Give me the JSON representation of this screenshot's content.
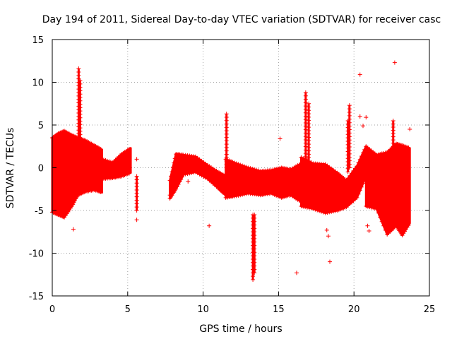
{
  "chart_data": {
    "type": "scatter",
    "title": "Day 194 of 2011, Sidereal Day-to-day VTEC variation (SDTVAR) for receiver casc",
    "xlabel": "GPS time / hours",
    "ylabel": "SDTVAR / TECUs",
    "xlim": [
      0,
      25
    ],
    "ylim": [
      -15,
      15
    ],
    "xticks": [
      0,
      5,
      10,
      15,
      20,
      25
    ],
    "yticks": [
      -15,
      -10,
      -5,
      0,
      5,
      10,
      15
    ],
    "xtick_labels": [
      "0",
      "5",
      "10",
      "15",
      "20",
      "25"
    ],
    "ytick_labels": [
      "-15",
      "-10",
      "-5",
      "0",
      "5",
      "10",
      "15"
    ],
    "grid": true,
    "marker": "+",
    "color": "#ff0000",
    "bands": [
      {
        "x": [
          0.0,
          0.4,
          0.8,
          1.3,
          1.7,
          2.2,
          2.8,
          3.3
        ],
        "upper": [
          3.5,
          4.0,
          4.3,
          3.8,
          3.5,
          3.2,
          2.6,
          2.1
        ],
        "lower": [
          -5.2,
          -5.5,
          -5.8,
          -4.5,
          -3.2,
          -2.8,
          -2.6,
          -2.9
        ]
      },
      {
        "x": [
          3.3,
          4.0,
          4.6,
          5.2
        ],
        "upper": [
          1.0,
          0.6,
          1.6,
          2.3
        ],
        "lower": [
          -1.3,
          -1.2,
          -1.0,
          -0.6
        ]
      },
      {
        "x": [
          7.8,
          8.2,
          8.7,
          9.5,
          10.3,
          11.0,
          11.5
        ],
        "upper": [
          -1.5,
          1.6,
          1.5,
          1.3,
          0.3,
          -0.5,
          -1.0
        ],
        "lower": [
          -3.6,
          -2.5,
          -0.8,
          -0.5,
          -1.3,
          -2.4,
          -3.2
        ]
      },
      {
        "x": [
          11.5,
          12.2,
          13.0,
          13.8,
          14.5,
          15.2,
          15.8,
          16.5
        ],
        "upper": [
          1.0,
          0.5,
          0.0,
          -0.4,
          -0.3,
          0.0,
          -0.2,
          0.5
        ],
        "lower": [
          -3.5,
          -3.3,
          -3.0,
          -3.2,
          -3.0,
          -3.5,
          -3.2,
          -4.0
        ]
      },
      {
        "x": [
          16.5,
          17.3,
          18.1,
          18.9,
          19.5,
          20.2,
          20.8
        ],
        "upper": [
          1.2,
          0.5,
          0.4,
          -0.6,
          -1.5,
          0.2,
          2.5
        ],
        "lower": [
          -4.5,
          -4.8,
          -5.3,
          -5.0,
          -4.6,
          -3.5,
          -1.0
        ]
      },
      {
        "x": [
          20.8,
          21.5,
          22.2,
          22.8,
          23.2,
          23.7
        ],
        "upper": [
          2.5,
          1.5,
          1.8,
          2.8,
          2.6,
          2.3
        ],
        "lower": [
          -4.5,
          -4.8,
          -7.8,
          -6.8,
          -7.9,
          -6.5
        ]
      }
    ],
    "spikes": [
      {
        "x": 1.75,
        "y0": 2.0,
        "y1": 11.6
      },
      {
        "x": 1.85,
        "y0": 1.5,
        "y1": 10.2
      },
      {
        "x": 11.55,
        "y0": 0.0,
        "y1": 6.3
      },
      {
        "x": 13.3,
        "y0": -5.5,
        "y1": -13.1
      },
      {
        "x": 13.4,
        "y0": -5.5,
        "y1": -12.3
      },
      {
        "x": 16.8,
        "y0": 0.5,
        "y1": 8.8
      },
      {
        "x": 17.0,
        "y0": 0.0,
        "y1": 7.5
      },
      {
        "x": 19.7,
        "y0": 0.0,
        "y1": 7.3
      },
      {
        "x": 19.6,
        "y0": -0.5,
        "y1": 5.5
      },
      {
        "x": 22.6,
        "y0": 2.5,
        "y1": 5.5
      },
      {
        "x": 5.6,
        "y0": -1.0,
        "y1": -5.0
      }
    ],
    "outliers": [
      {
        "x": 1.4,
        "y": -7.2
      },
      {
        "x": 5.6,
        "y": 1.0
      },
      {
        "x": 5.6,
        "y": -6.1
      },
      {
        "x": 10.4,
        "y": -6.8
      },
      {
        "x": 15.1,
        "y": 3.4
      },
      {
        "x": 16.2,
        "y": -12.3
      },
      {
        "x": 18.4,
        "y": -11.0
      },
      {
        "x": 20.4,
        "y": 10.9
      },
      {
        "x": 20.4,
        "y": 6.0
      },
      {
        "x": 20.6,
        "y": 4.9
      },
      {
        "x": 20.8,
        "y": 5.9
      },
      {
        "x": 20.9,
        "y": -6.8
      },
      {
        "x": 21.0,
        "y": -7.4
      },
      {
        "x": 22.7,
        "y": 12.3
      },
      {
        "x": 23.7,
        "y": 4.5
      },
      {
        "x": 18.2,
        "y": -7.3
      },
      {
        "x": 18.3,
        "y": -8.0
      },
      {
        "x": 9.0,
        "y": -1.6
      },
      {
        "x": 7.8,
        "y": -3.2
      }
    ]
  }
}
